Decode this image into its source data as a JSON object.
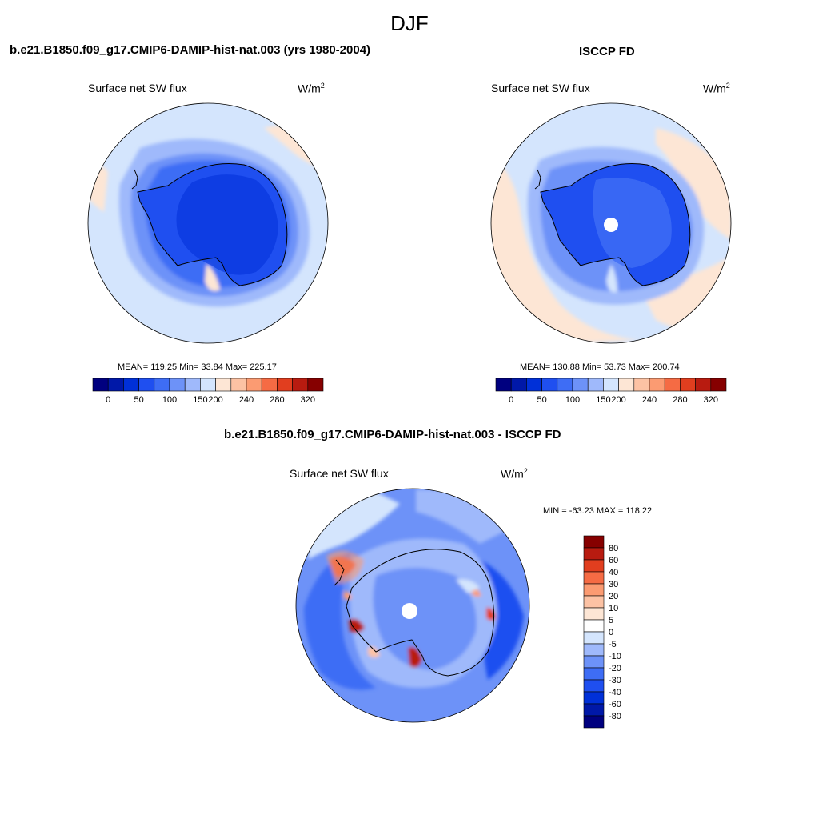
{
  "suptitle": "DJF",
  "panels": {
    "model": {
      "title": "b.e21.B1850.f09_g17.CMIP6-DAMIP-hist-nat.003 (yrs 1980-2004)",
      "variable": "Surface net SW flux",
      "units_base": "W/m",
      "units_exp": "2",
      "stats": "MEAN= 119.25  Min=  33.84  Max= 225.17"
    },
    "obs": {
      "title": "ISCCP FD",
      "variable": "Surface net SW flux",
      "units_base": "W/m",
      "units_exp": "2",
      "stats": "MEAN= 130.88  Min=  53.73  Max= 200.74"
    },
    "diff": {
      "title": "b.e21.B1850.f09_g17.CMIP6-DAMIP-hist-nat.003 - ISCCP FD",
      "variable": "Surface net SW flux",
      "units_base": "W/m",
      "units_exp": "2",
      "stats": "MIN = -63.23 MAX = 118.22"
    }
  },
  "chart_data": [
    {
      "type": "heatmap",
      "projection": "south-polar-stereographic",
      "title": "b.e21.B1850.f09_g17.CMIP6-DAMIP-hist-nat.003 (yrs 1980-2004)",
      "variable": "Surface net SW flux",
      "mean": 119.25,
      "min": 33.84,
      "max": 225.17,
      "colorbar": {
        "orientation": "horizontal",
        "tick_labels": [
          "0",
          "50",
          "100",
          "150",
          "200",
          "240",
          "280",
          "320"
        ],
        "colors": [
          "#00007f",
          "#0018a8",
          "#0030d8",
          "#1f4ff0",
          "#3e6df5",
          "#6d92f8",
          "#9fb9fb",
          "#d4e5fd",
          "#fde6d5",
          "#fcc2a4",
          "#fb9b72",
          "#f56b44",
          "#e13e1f",
          "#b81b10",
          "#860000"
        ]
      }
    },
    {
      "type": "heatmap",
      "projection": "south-polar-stereographic",
      "title": "ISCCP FD",
      "variable": "Surface net SW flux",
      "mean": 130.88,
      "min": 53.73,
      "max": 200.74,
      "colorbar": {
        "orientation": "horizontal",
        "tick_labels": [
          "0",
          "50",
          "100",
          "150",
          "200",
          "240",
          "280",
          "320"
        ],
        "colors": [
          "#00007f",
          "#0018a8",
          "#0030d8",
          "#1f4ff0",
          "#3e6df5",
          "#6d92f8",
          "#9fb9fb",
          "#d4e5fd",
          "#fde6d5",
          "#fcc2a4",
          "#fb9b72",
          "#f56b44",
          "#e13e1f",
          "#b81b10",
          "#860000"
        ]
      }
    },
    {
      "type": "heatmap",
      "projection": "south-polar-stereographic",
      "title": "b.e21.B1850.f09_g17.CMIP6-DAMIP-hist-nat.003 - ISCCP FD",
      "variable": "Surface net SW flux",
      "min": -63.23,
      "max": 118.22,
      "colorbar": {
        "orientation": "vertical",
        "tick_labels": [
          "80",
          "60",
          "40",
          "30",
          "20",
          "10",
          "5",
          "0",
          "-5",
          "-10",
          "-20",
          "-30",
          "-40",
          "-60",
          "-80"
        ],
        "colors": [
          "#860000",
          "#b81b10",
          "#e13e1f",
          "#f56b44",
          "#fb9b72",
          "#fcc2a4",
          "#fde6d5",
          "#ffffff",
          "#d4e5fd",
          "#9fb9fb",
          "#6d92f8",
          "#3e6df5",
          "#1f4ff0",
          "#0030d8",
          "#0018a8",
          "#00007f"
        ]
      }
    }
  ]
}
